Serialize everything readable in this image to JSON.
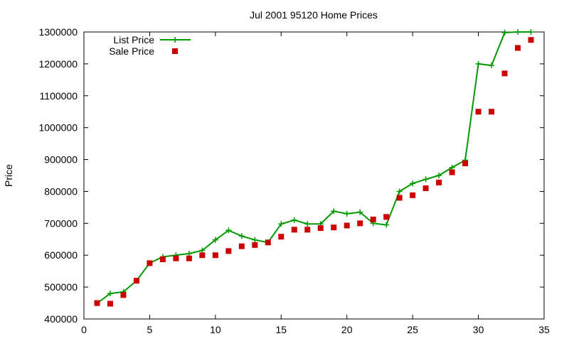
{
  "chart_data": {
    "type": "line",
    "title": "Jul 2001 95120 Home Prices",
    "xlabel": "",
    "ylabel": "Price",
    "xlim": [
      0,
      35
    ],
    "ylim": [
      400000,
      1300000
    ],
    "xticks": [
      0,
      5,
      10,
      15,
      20,
      25,
      30,
      35
    ],
    "yticks": [
      400000,
      500000,
      600000,
      700000,
      800000,
      900000,
      1000000,
      1100000,
      1200000,
      1300000
    ],
    "grid": false,
    "legend_position": "top-left",
    "series": [
      {
        "name": "List Price",
        "style": "line+crosses",
        "color": "#009900",
        "x": [
          1,
          2,
          3,
          4,
          5,
          6,
          7,
          8,
          9,
          10,
          11,
          12,
          13,
          14,
          15,
          16,
          17,
          18,
          19,
          20,
          21,
          22,
          23,
          24,
          25,
          26,
          27,
          28,
          29,
          30,
          31,
          32,
          33,
          34
        ],
        "values": [
          449000,
          480000,
          485000,
          520000,
          575000,
          595000,
          600000,
          605000,
          615000,
          648000,
          678000,
          660000,
          648000,
          640000,
          698000,
          710000,
          698000,
          698000,
          738000,
          730000,
          735000,
          700000,
          695000,
          800000,
          825000,
          838000,
          850000,
          875000,
          898000,
          1200000,
          1195000,
          1298000,
          1300000,
          1300000
        ]
      },
      {
        "name": "Sale Price",
        "style": "squares",
        "color": "#cc0000",
        "x": [
          1,
          2,
          3,
          4,
          5,
          6,
          7,
          8,
          9,
          10,
          11,
          12,
          13,
          14,
          15,
          16,
          17,
          18,
          19,
          20,
          21,
          22,
          23,
          24,
          25,
          26,
          27,
          28,
          29,
          30,
          31,
          32,
          33,
          34
        ],
        "values": [
          450000,
          448000,
          475000,
          520000,
          575000,
          587000,
          590000,
          590000,
          600000,
          600000,
          613000,
          628000,
          632000,
          640000,
          658000,
          680000,
          680000,
          685000,
          687000,
          693000,
          700000,
          712000,
          720000,
          780000,
          788000,
          810000,
          828000,
          860000,
          888000,
          1050000,
          1050000,
          1170000,
          1250000,
          1275000
        ]
      }
    ]
  }
}
